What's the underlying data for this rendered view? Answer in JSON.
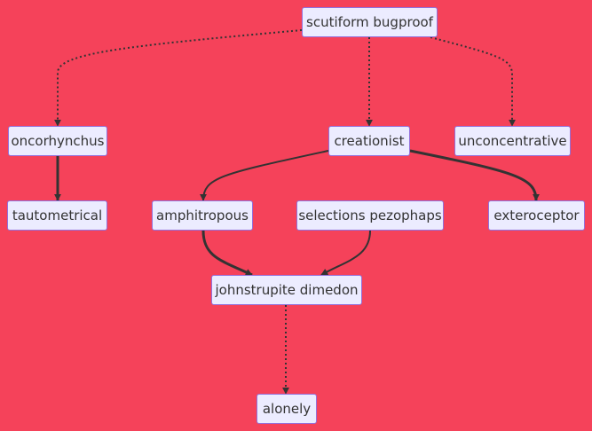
{
  "diagram": {
    "colors": {
      "background": "#f5425a",
      "node_fill": "#ececff",
      "node_border": "#9370db",
      "edge": "#333333",
      "text": "#333333"
    },
    "nodes": {
      "scutiform": {
        "label": "scutiform bugproof"
      },
      "oncorhynchus": {
        "label": "oncorhynchus"
      },
      "creationist": {
        "label": "creationist"
      },
      "unconcentrative": {
        "label": "unconcentrative"
      },
      "tautometrical": {
        "label": "tautometrical"
      },
      "amphitropous": {
        "label": "amphitropous"
      },
      "selections": {
        "label": "selections pezophaps"
      },
      "exteroceptor": {
        "label": "exteroceptor"
      },
      "johnstrupite": {
        "label": "johnstrupite dimedon"
      },
      "alonely": {
        "label": "alonely"
      }
    },
    "edges": [
      {
        "from": "scutiform",
        "to": "oncorhynchus",
        "style": "dotted"
      },
      {
        "from": "scutiform",
        "to": "creationist",
        "style": "dotted"
      },
      {
        "from": "scutiform",
        "to": "unconcentrative",
        "style": "dotted"
      },
      {
        "from": "oncorhynchus",
        "to": "tautometrical",
        "style": "thick"
      },
      {
        "from": "creationist",
        "to": "amphitropous",
        "style": "normal"
      },
      {
        "from": "creationist",
        "to": "exteroceptor",
        "style": "thick"
      },
      {
        "from": "amphitropous",
        "to": "johnstrupite",
        "style": "thick"
      },
      {
        "from": "selections",
        "to": "johnstrupite",
        "style": "normal"
      },
      {
        "from": "johnstrupite",
        "to": "alonely",
        "style": "dotted"
      }
    ]
  }
}
